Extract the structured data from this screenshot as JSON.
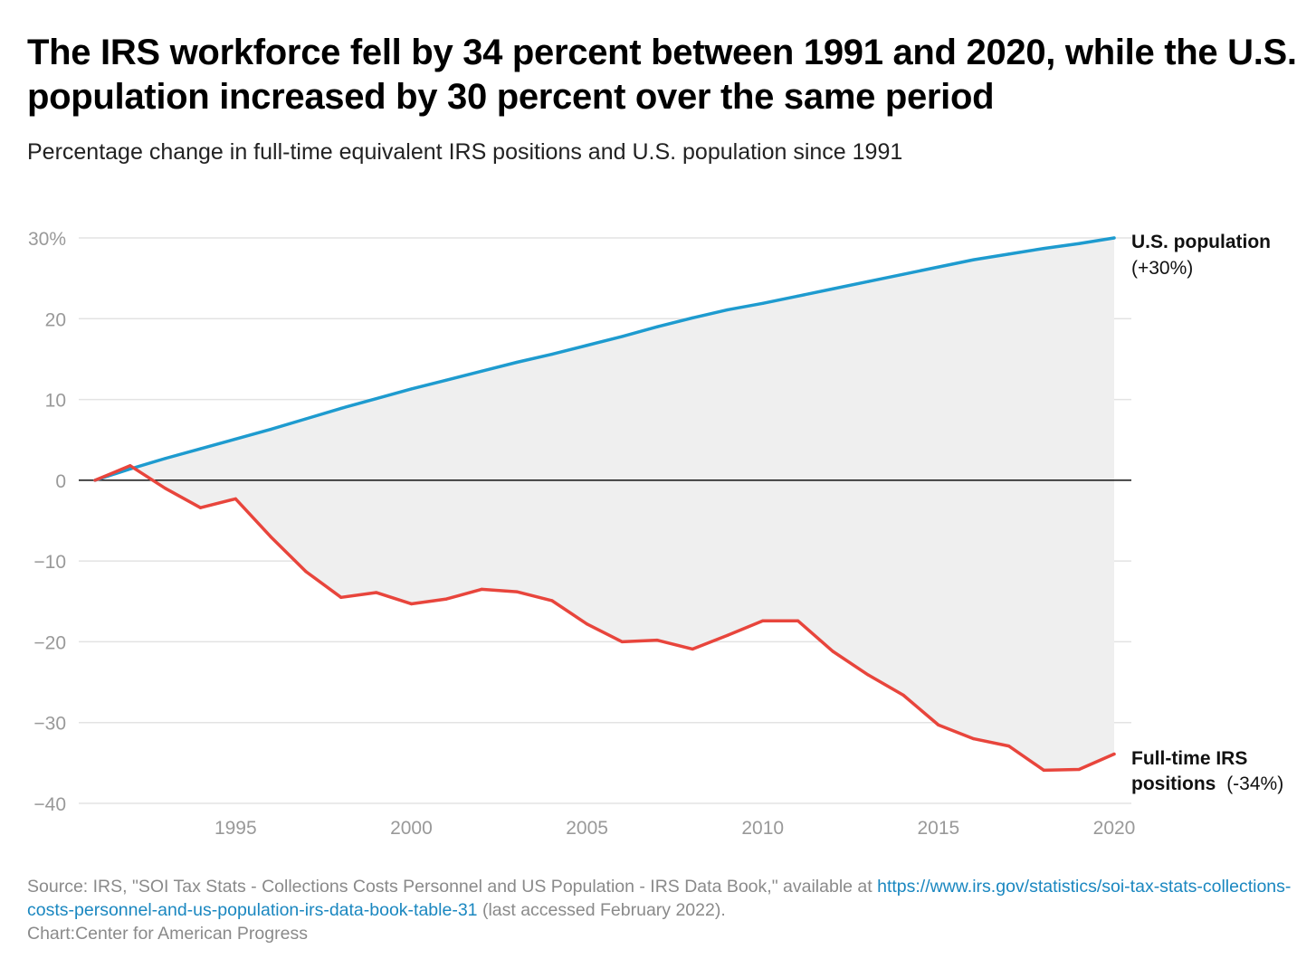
{
  "title": "The IRS workforce fell by 34 percent between 1991 and 2020, while the U.S. population increased by 30 percent over the same period",
  "subtitle": "Percentage change in full-time equivalent IRS positions and U.S. population since 1991",
  "source": {
    "prefix": "Source: IRS, \"SOI Tax Stats - Collections Costs Personnel and US Population - IRS Data Book,\" available at ",
    "link": "https://www.irs.gov/statistics/soi-tax-stats-collections-costs-personnel-and-us-population-irs-data-book-table-31",
    "suffix": " (last accessed February 2022).",
    "credit": "Chart:Center for American Progress"
  },
  "colors": {
    "population": "#1e9bcf",
    "irs": "#e8453c",
    "fill": "#efefef",
    "grid": "#e3e3e3",
    "zero": "#222222"
  },
  "chart_data": {
    "type": "line",
    "x": [
      1991,
      1992,
      1993,
      1994,
      1995,
      1996,
      1997,
      1998,
      1999,
      2000,
      2001,
      2002,
      2003,
      2004,
      2005,
      2006,
      2007,
      2008,
      2009,
      2010,
      2011,
      2012,
      2013,
      2014,
      2015,
      2016,
      2017,
      2018,
      2019,
      2020
    ],
    "series": [
      {
        "name": "U.S. population",
        "end_label_bold": "U.S. population",
        "end_label_normal": "(+30%)",
        "values": [
          0,
          1.4,
          2.7,
          3.9,
          5.1,
          6.3,
          7.6,
          8.9,
          10.1,
          11.3,
          12.4,
          13.5,
          14.6,
          15.6,
          16.7,
          17.8,
          19.0,
          20.1,
          21.1,
          21.9,
          22.8,
          23.7,
          24.6,
          25.5,
          26.4,
          27.3,
          28.0,
          28.7,
          29.3,
          30.0
        ]
      },
      {
        "name": "Full-time IRS positions",
        "end_label_bold_line1": "Full-time IRS",
        "end_label_bold_line2": "positions",
        "end_label_normal": "(-34%)",
        "values": [
          0,
          1.8,
          -1.0,
          -3.4,
          -2.3,
          -7.0,
          -11.3,
          -14.5,
          -13.9,
          -15.3,
          -14.7,
          -13.5,
          -13.8,
          -14.9,
          -17.8,
          -20.0,
          -19.8,
          -20.9,
          -19.2,
          -17.4,
          -17.4,
          -21.2,
          -24.1,
          -26.6,
          -30.3,
          -32.0,
          -32.9,
          -35.9,
          -35.8,
          -33.9
        ]
      }
    ],
    "y_ticks": [
      30,
      20,
      10,
      0,
      -10,
      -20,
      -30,
      -40
    ],
    "y_tick_labels": [
      "30%",
      "20",
      "10",
      "0",
      "−10",
      "−20",
      "−30",
      "−40"
    ],
    "x_ticks": [
      1995,
      2000,
      2005,
      2010,
      2015,
      2020
    ],
    "x_tick_labels": [
      "1995",
      "2000",
      "2005",
      "2010",
      "2015",
      "2020"
    ],
    "ylim": [
      -40,
      30
    ],
    "xlim": [
      1991,
      2020
    ],
    "grid": true,
    "shaded_between_series": true
  }
}
